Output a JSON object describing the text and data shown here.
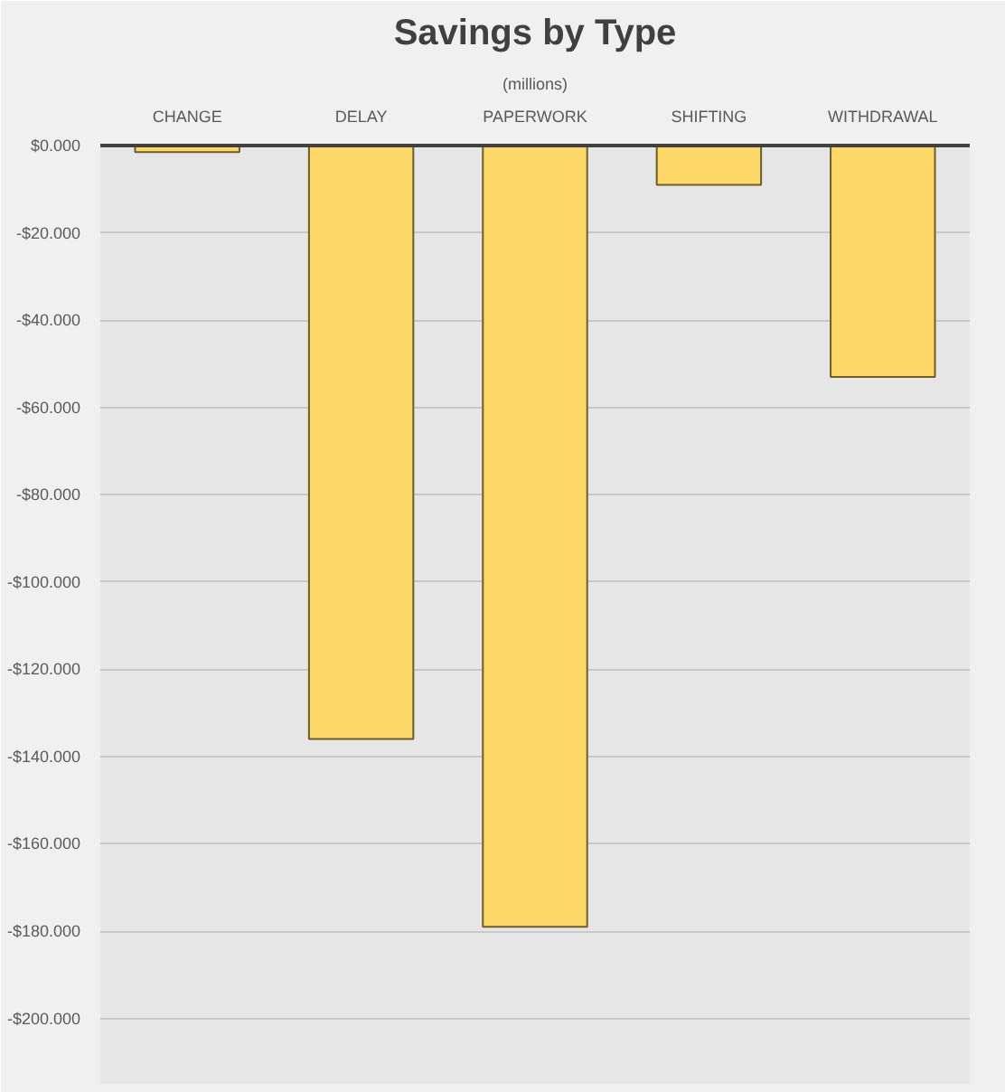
{
  "chart_data": {
    "type": "bar",
    "title": "Savings by Type",
    "subtitle": "(millions)",
    "categories": [
      "CHANGE",
      "DELAY",
      "PAPERWORK",
      "SHIFTING",
      "WITHDRAWAL"
    ],
    "values": [
      -1.5,
      -136,
      -179,
      -9,
      -53
    ],
    "color": "#fdd868",
    "ylim": [
      -215,
      0
    ],
    "yticks": [
      {
        "value": 0,
        "label": "$0.000"
      },
      {
        "value": -20,
        "label": "-$20.000"
      },
      {
        "value": -40,
        "label": "-$40.000"
      },
      {
        "value": -60,
        "label": "-$60.000"
      },
      {
        "value": -80,
        "label": "-$80.000"
      },
      {
        "value": -100,
        "label": "-$100.000"
      },
      {
        "value": -120,
        "label": "-$120.000"
      },
      {
        "value": -140,
        "label": "-$140.000"
      },
      {
        "value": -160,
        "label": "-$160.000"
      },
      {
        "value": -180,
        "label": "-$180.000"
      },
      {
        "value": -200,
        "label": "-$200.000"
      }
    ],
    "grid": "y"
  }
}
